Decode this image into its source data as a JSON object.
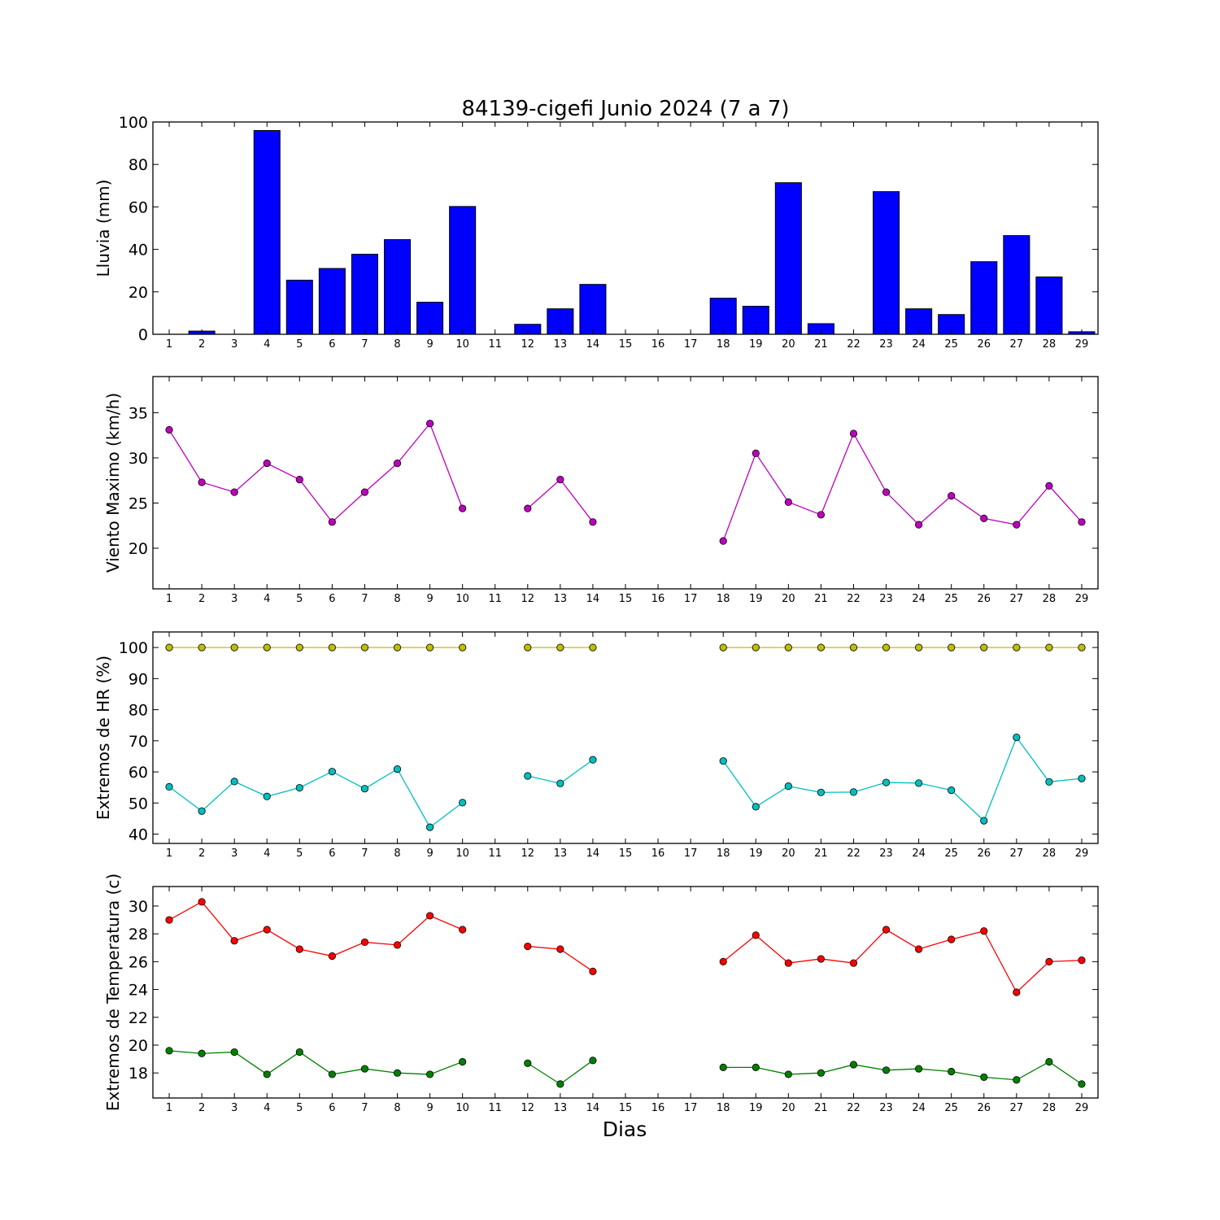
{
  "chart_data": {
    "title": "84139-cigefi Junio 2024  (7 a 7)",
    "xlabel": "Dias",
    "x": [
      1,
      2,
      3,
      4,
      5,
      6,
      7,
      8,
      9,
      10,
      11,
      12,
      13,
      14,
      15,
      16,
      17,
      18,
      19,
      20,
      21,
      22,
      23,
      24,
      25,
      26,
      27,
      28,
      29
    ],
    "xlim": [
      0.5,
      29.5
    ],
    "panels": [
      {
        "type": "bar",
        "ylabel": "Lluvia (mm)",
        "ylim": [
          0,
          100
        ],
        "yticks": [
          0,
          20,
          40,
          60,
          80,
          100
        ],
        "series": [
          {
            "color": "#0000ff",
            "values": [
              0,
              1.5,
              0,
              96,
              25.5,
              31,
              37.7,
              44.6,
              15.1,
              60.2,
              null,
              4.7,
              12,
              23.5,
              null,
              null,
              null,
              17,
              13.2,
              71.4,
              5,
              0,
              67.2,
              12,
              9.3,
              34.2,
              46.5,
              27,
              1.2
            ]
          }
        ]
      },
      {
        "type": "line",
        "ylabel": "Viento Maximo (km/h)",
        "ylim": [
          15.5,
          39
        ],
        "yticks": [
          20,
          25,
          30,
          35
        ],
        "series": [
          {
            "color": "#bf00bf",
            "values": [
              33.1,
              27.3,
              26.2,
              29.4,
              27.6,
              22.9,
              26.2,
              29.4,
              33.8,
              24.4,
              null,
              24.4,
              27.6,
              22.9,
              null,
              null,
              null,
              20.8,
              30.5,
              25.1,
              23.7,
              32.7,
              26.2,
              22.6,
              25.8,
              23.3,
              22.6,
              26.9,
              22.9
            ]
          }
        ]
      },
      {
        "type": "line",
        "ylabel": "Extremos de HR (%)",
        "ylim": [
          37,
          105
        ],
        "yticks": [
          40,
          50,
          60,
          70,
          80,
          90,
          100
        ],
        "series": [
          {
            "color": "#bfbf00",
            "values": [
              100,
              100,
              100,
              100,
              100,
              100,
              100,
              100,
              100,
              100,
              null,
              100,
              100,
              100,
              null,
              null,
              null,
              100,
              100,
              100,
              100,
              100,
              100,
              100,
              100,
              100,
              100,
              100,
              100
            ]
          },
          {
            "color": "#00bfbf",
            "values": [
              55.2,
              47.4,
              56.9,
              52.1,
              54.9,
              60.1,
              54.6,
              60.9,
              42.2,
              50.1,
              null,
              58.7,
              56.3,
              63.9,
              null,
              null,
              null,
              63.5,
              48.8,
              55.4,
              53.4,
              53.5,
              56.6,
              56.4,
              54.1,
              44.3,
              71.1,
              56.8,
              57.9
            ]
          }
        ]
      },
      {
        "type": "line",
        "ylabel": "Extremos de Temperatura (c)",
        "ylim": [
          16.2,
          31.4
        ],
        "yticks": [
          18,
          20,
          22,
          24,
          26,
          28,
          30
        ],
        "series": [
          {
            "color": "#ff0000",
            "values": [
              29,
              30.3,
              27.5,
              28.3,
              26.9,
              26.4,
              27.4,
              27.2,
              29.3,
              28.3,
              null,
              27.1,
              26.9,
              25.3,
              null,
              null,
              null,
              26,
              27.9,
              25.9,
              26.2,
              25.9,
              28.3,
              26.9,
              27.6,
              28.2,
              23.8,
              26,
              26.1
            ]
          },
          {
            "color": "#008000",
            "values": [
              19.6,
              19.4,
              19.5,
              17.9,
              19.5,
              17.9,
              18.3,
              18,
              17.9,
              18.8,
              null,
              18.7,
              17.2,
              18.9,
              null,
              null,
              null,
              18.4,
              18.4,
              17.9,
              18,
              18.6,
              18.2,
              18.3,
              18.1,
              17.7,
              17.5,
              18.8,
              17.2
            ]
          }
        ]
      }
    ]
  }
}
